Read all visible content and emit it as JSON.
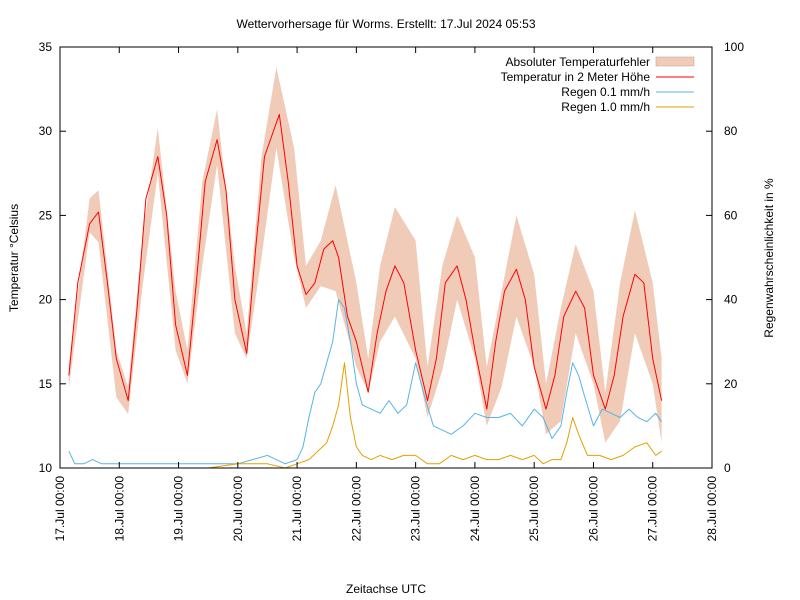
{
  "chart_data": {
    "type": "line",
    "title": "Wettervorhersage für Worms. Erstellt: 17.Jul 2024 05:53",
    "xlabel": "Zeitachse UTC",
    "ylabel": "Temperatur °Celsius",
    "y2label": "Regenwahrscheinlichkeit in %",
    "xlim": [
      0,
      11
    ],
    "ylim": [
      10,
      35
    ],
    "y2lim": [
      0,
      100
    ],
    "x_unit": "days since 17.Jul 00:00 UTC",
    "x_ticks": [
      0,
      1,
      2,
      3,
      4,
      5,
      6,
      7,
      8,
      9,
      10,
      11
    ],
    "x_tick_labels": [
      "17.Jul 00:00",
      "18.Jul 00:00",
      "19.Jul 00:00",
      "20.Jul 00:00",
      "21.Jul 00:00",
      "22.Jul 00:00",
      "23.Jul 00:00",
      "24.Jul 00:00",
      "25.Jul 00:00",
      "26.Jul 00:00",
      "27.Jul 00:00",
      "28.Jul 00:00"
    ],
    "y_ticks": [
      10,
      15,
      20,
      25,
      30,
      35
    ],
    "y2_ticks": [
      0,
      20,
      40,
      60,
      80,
      100
    ],
    "legend_position": "top-right",
    "series": [
      {
        "name": "Absoluter Temperaturfehler",
        "kind": "band",
        "color": "#f0cbb8",
        "x": [
          0.15,
          0.5,
          0.65,
          0.95,
          1.15,
          1.4,
          1.65,
          1.95,
          2.15,
          2.4,
          2.65,
          2.95,
          3.15,
          3.4,
          3.65,
          3.95,
          4.15,
          4.4,
          4.65,
          5.0,
          5.2,
          5.4,
          5.65,
          6.0,
          6.2,
          6.45,
          6.7,
          7.0,
          7.2,
          7.45,
          7.7,
          8.0,
          8.2,
          8.45,
          8.7,
          9.0,
          9.2,
          9.45,
          9.7,
          10.0,
          10.15
        ],
        "lower": [
          14.8,
          24.0,
          23.4,
          14.2,
          13.2,
          21.0,
          27.5,
          17.0,
          15.0,
          22.0,
          28.0,
          18.0,
          16.5,
          22.5,
          29.0,
          22.5,
          19.5,
          20.8,
          20.5,
          16.0,
          14.5,
          17.5,
          19.0,
          16.5,
          13.0,
          15.8,
          20.0,
          16.5,
          12.5,
          14.8,
          19.0,
          16.0,
          12.0,
          12.8,
          18.0,
          15.0,
          11.5,
          12.8,
          18.0,
          15.0,
          11.5
        ],
        "upper": [
          16.2,
          26.0,
          26.5,
          17.0,
          14.8,
          24.0,
          30.2,
          20.5,
          17.0,
          27.0,
          31.3,
          22.0,
          18.0,
          28.5,
          33.8,
          29.0,
          22.0,
          23.5,
          26.8,
          21.0,
          16.5,
          22.0,
          25.5,
          23.5,
          16.0,
          22.0,
          25.0,
          22.5,
          16.0,
          20.5,
          25.0,
          21.5,
          15.0,
          19.5,
          23.3,
          20.5,
          14.5,
          21.0,
          25.3,
          21.0,
          16.5
        ]
      },
      {
        "name": "Temperatur in 2 Meter Höhe",
        "kind": "line",
        "axis": "y",
        "color": "#ff0000",
        "x": [
          0.15,
          0.3,
          0.5,
          0.65,
          0.8,
          0.95,
          1.15,
          1.3,
          1.45,
          1.65,
          1.8,
          1.95,
          2.15,
          2.3,
          2.45,
          2.65,
          2.8,
          2.95,
          3.15,
          3.3,
          3.45,
          3.7,
          3.85,
          4.0,
          4.15,
          4.3,
          4.45,
          4.6,
          4.7,
          4.85,
          5.0,
          5.2,
          5.35,
          5.5,
          5.65,
          5.8,
          6.0,
          6.2,
          6.35,
          6.5,
          6.7,
          6.85,
          7.0,
          7.2,
          7.35,
          7.5,
          7.7,
          7.85,
          8.0,
          8.2,
          8.35,
          8.5,
          8.7,
          8.85,
          9.0,
          9.2,
          9.35,
          9.5,
          9.7,
          9.85,
          10.0,
          10.15
        ],
        "y": [
          15.5,
          21.0,
          24.5,
          25.2,
          21.0,
          16.5,
          14.0,
          19.5,
          26.0,
          28.5,
          25.0,
          18.5,
          15.5,
          21.0,
          27.0,
          29.5,
          26.5,
          20.0,
          16.8,
          23.0,
          28.5,
          31.0,
          27.0,
          22.0,
          20.3,
          21.0,
          23.0,
          23.5,
          22.5,
          19.0,
          17.5,
          14.5,
          18.0,
          20.5,
          22.0,
          21.0,
          17.0,
          14.0,
          16.5,
          21.0,
          22.0,
          20.0,
          17.0,
          13.5,
          17.5,
          20.5,
          21.8,
          20.0,
          16.0,
          13.5,
          15.5,
          19.0,
          20.5,
          19.5,
          15.5,
          13.5,
          15.5,
          19.0,
          21.5,
          21.0,
          16.5,
          14.0
        ]
      },
      {
        "name": "Regen 0.1 mm/h",
        "kind": "line",
        "axis": "y2",
        "color": "#56b4e9",
        "x": [
          0.15,
          0.25,
          0.4,
          0.55,
          0.7,
          1.0,
          1.5,
          2.0,
          2.5,
          3.0,
          3.5,
          3.8,
          4.0,
          4.1,
          4.2,
          4.3,
          4.4,
          4.5,
          4.6,
          4.7,
          4.8,
          4.9,
          5.0,
          5.1,
          5.25,
          5.4,
          5.55,
          5.7,
          5.85,
          6.0,
          6.15,
          6.3,
          6.45,
          6.6,
          6.8,
          7.0,
          7.2,
          7.4,
          7.6,
          7.8,
          8.0,
          8.15,
          8.3,
          8.45,
          8.55,
          8.65,
          8.75,
          8.85,
          9.0,
          9.15,
          9.3,
          9.45,
          9.6,
          9.75,
          9.9,
          10.05,
          10.15
        ],
        "y": [
          4,
          1,
          1,
          2,
          1,
          1,
          1,
          1,
          1,
          1,
          3,
          1,
          2,
          5,
          12,
          18,
          20,
          25,
          30,
          40,
          38,
          30,
          20,
          15,
          14,
          13,
          16,
          13,
          15,
          25,
          17,
          10,
          9,
          8,
          10,
          13,
          12,
          12,
          13,
          10,
          14,
          12,
          7,
          10,
          18,
          25,
          22,
          17,
          10,
          14,
          13,
          12,
          14,
          12,
          11,
          13,
          11
        ]
      },
      {
        "name": "Regen 1.0 mm/h",
        "kind": "line",
        "axis": "y2",
        "color": "#e69f00",
        "x": [
          0.15,
          0.5,
          1.0,
          1.5,
          2.0,
          2.5,
          3.0,
          3.5,
          3.8,
          4.0,
          4.2,
          4.35,
          4.5,
          4.6,
          4.7,
          4.8,
          4.9,
          5.0,
          5.1,
          5.25,
          5.4,
          5.6,
          5.8,
          6.0,
          6.2,
          6.4,
          6.6,
          6.8,
          7.0,
          7.2,
          7.4,
          7.6,
          7.8,
          8.0,
          8.15,
          8.3,
          8.45,
          8.55,
          8.65,
          8.75,
          8.9,
          9.1,
          9.3,
          9.5,
          9.7,
          9.9,
          10.05,
          10.15
        ],
        "y": [
          0,
          0,
          0,
          0,
          0,
          0,
          1,
          1,
          0,
          1,
          2,
          4,
          6,
          10,
          15,
          25,
          12,
          5,
          3,
          2,
          3,
          2,
          3,
          3,
          1,
          1,
          3,
          2,
          3,
          2,
          2,
          3,
          2,
          3,
          1,
          2,
          2,
          6,
          12,
          8,
          3,
          3,
          2,
          3,
          5,
          6,
          3,
          4
        ]
      }
    ]
  }
}
